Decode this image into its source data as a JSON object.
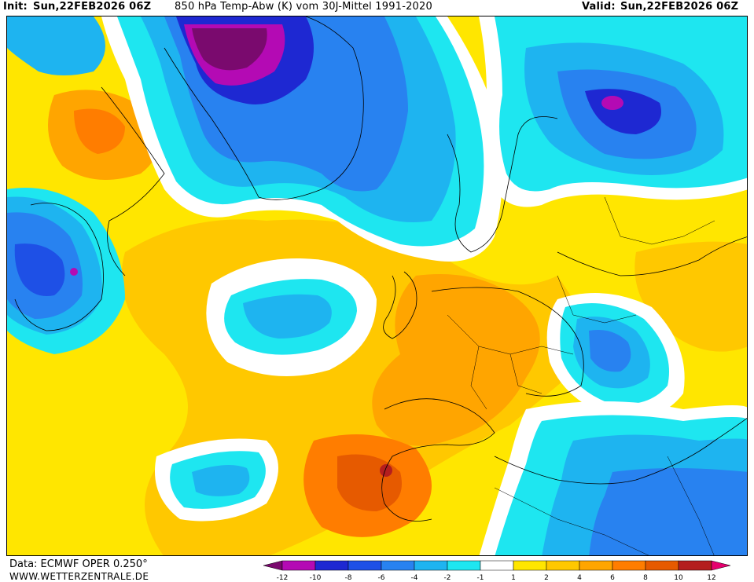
{
  "header": {
    "init_label": "Init:",
    "init_value": "Sun,22FEB2026 06Z",
    "title": "850 hPa Temp-Abw (K) vom 30J-Mittel 1991-2020",
    "valid_label": "Valid:",
    "valid_value": "Sun,22FEB2026 06Z"
  },
  "footer": {
    "source": "Data: ECMWF OPER 0.250°",
    "website": "WWW.WETTERZENTRALE.DE"
  },
  "legend": {
    "ticks": [
      "-12",
      "-10",
      "-8",
      "-6",
      "-4",
      "-2",
      "-1",
      "1",
      "2",
      "4",
      "6",
      "8",
      "10",
      "12"
    ],
    "colors": [
      "#7a0a6e",
      "#b40ab4",
      "#1e28d2",
      "#1e50e6",
      "#2882f0",
      "#1eb4f0",
      "#1ee6f0",
      "#ffffff",
      "#ffe600",
      "#ffc800",
      "#ffa500",
      "#ff7d00",
      "#e65a00",
      "#b41e1e",
      "#e6006e"
    ]
  },
  "map": {
    "colors": {
      "strong_cold": "#7a0a6e",
      "very_cold": "#b40ab4",
      "cold_deep": "#1e50e6",
      "cold": "#2882f0",
      "cool": "#1eb4f0",
      "light_cool": "#1ee6f0",
      "neutral": "#ffffff",
      "mild": "#ffe600",
      "warm": "#ffc800",
      "warmer": "#ffa500",
      "hot": "#ff7d00",
      "very_hot": "#e65a00",
      "extreme": "#b41e1e"
    }
  }
}
